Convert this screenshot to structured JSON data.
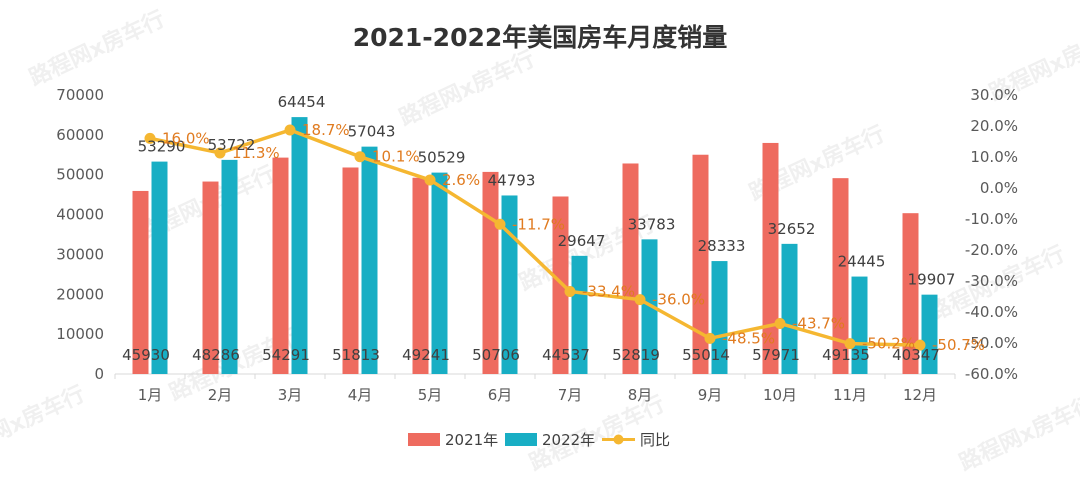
{
  "chart_data": {
    "type": "bar",
    "title": "2021-2022年美国房车月度销量",
    "categories": [
      "1月",
      "2月",
      "3月",
      "4月",
      "5月",
      "6月",
      "7月",
      "8月",
      "9月",
      "10月",
      "11月",
      "12月"
    ],
    "series": [
      {
        "name": "2021年",
        "type": "bar",
        "color": "#ee6b5f",
        "values": [
          45930,
          48286,
          54291,
          51813,
          49241,
          50706,
          44537,
          52819,
          55014,
          57971,
          49135,
          40347
        ]
      },
      {
        "name": "2022年",
        "type": "bar",
        "color": "#18aec4",
        "values": [
          53290,
          53722,
          64454,
          57043,
          50529,
          44793,
          29647,
          33783,
          28333,
          32652,
          24445,
          19907
        ]
      },
      {
        "name": "同比",
        "type": "line",
        "axis": "right",
        "color": "#f5b731",
        "values": [
          16.0,
          11.3,
          18.7,
          10.1,
          2.6,
          -11.7,
          -33.4,
          -36.0,
          -48.5,
          -43.7,
          -50.2,
          -50.7
        ]
      }
    ],
    "line_labels": [
      "16.0%",
      "11.3%",
      "18.7%",
      "10.1%",
      "2.6%",
      "-11.7%",
      "-33.4%",
      "-36.0%",
      "-48.5%",
      "-43.7%",
      "-50.2%",
      "-50.7%"
    ],
    "y_left": {
      "min": 0,
      "max": 70000,
      "ticks": [
        "0",
        "10000",
        "20000",
        "30000",
        "40000",
        "50000",
        "60000",
        "70000"
      ]
    },
    "y_right": {
      "min": -60,
      "max": 30,
      "ticks": [
        "-60.0%",
        "-50.0%",
        "-40.0%",
        "-30.0%",
        "-20.0%",
        "-10.0%",
        "0.0%",
        "10.0%",
        "20.0%",
        "30.0%"
      ]
    },
    "legend": [
      "2021年",
      "2022年",
      "同比"
    ],
    "legend_position": "bottom",
    "grid": false
  },
  "watermark": "路程网x房车行"
}
